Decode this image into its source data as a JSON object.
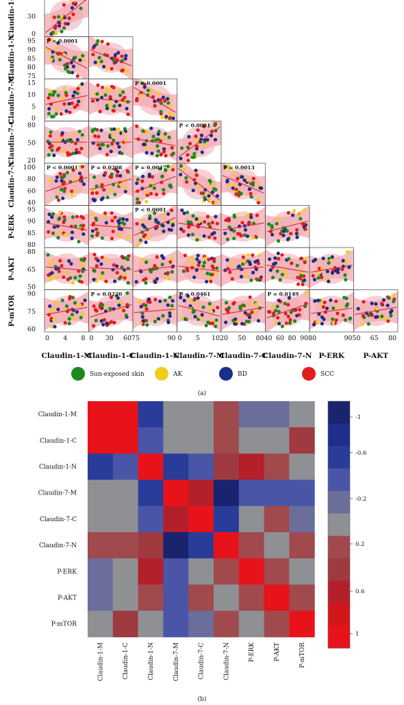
{
  "chart_data": [
    {
      "type": "scatter",
      "variables": [
        "Claudin-1-M",
        "Claudin-1-C",
        "Claudin-1-N",
        "Claudin-7-M",
        "Claudin-7-C",
        "Claudin-7-N",
        "P-ERK",
        "P-AKT",
        "P-mTOR"
      ],
      "row_labels": [
        "Claudin-1-C",
        "Claudin-1-N",
        "Claudin-7-M",
        "Claudin-7-C",
        "Claudin-7-N",
        "P-ERK",
        "P-AKT",
        "P-mTOR"
      ],
      "col_labels": [
        "Claudin-1-M",
        "Claudin-1-C",
        "Claudin-1-N",
        "Claudin-7-M",
        "Claudin-7-C",
        "Claudin-7-N",
        "P-ERK",
        "P-AKT"
      ],
      "row_ticks": [
        [
          "60",
          "30",
          "0"
        ],
        [
          "95",
          "90",
          "85",
          "80",
          "75"
        ],
        [
          "15",
          "10",
          "5",
          "0"
        ],
        [
          "80",
          "50",
          "20"
        ],
        [
          "100",
          "80",
          "60",
          "40"
        ],
        [
          "95",
          "90",
          "85",
          "80"
        ],
        [
          "80",
          "65",
          "50"
        ],
        [
          "90",
          "75",
          "60"
        ]
      ],
      "col_ticks": [
        [
          "0",
          "4",
          "8"
        ],
        [
          "0",
          "30",
          "60"
        ],
        [
          "75",
          "90"
        ],
        [
          "0",
          "5",
          "10"
        ],
        [
          "20",
          "50",
          "80"
        ],
        [
          "40",
          "60",
          "80",
          "90"
        ],
        [
          "80",
          "90"
        ],
        [
          "50",
          "65",
          "80"
        ]
      ],
      "row_ranges": [
        [
          -5,
          70
        ],
        [
          72,
          100
        ],
        [
          -1,
          20
        ],
        [
          10,
          95
        ],
        [
          35,
          105
        ],
        [
          78,
          100
        ],
        [
          45,
          90
        ],
        [
          58,
          96
        ]
      ],
      "col_ranges": [
        [
          -1,
          12
        ],
        [
          -5,
          80
        ],
        [
          70,
          100
        ],
        [
          -1,
          15
        ],
        [
          10,
          95
        ],
        [
          35,
          100
        ],
        [
          78,
          100
        ],
        [
          45,
          90
        ]
      ],
      "p_values": [
        {
          "row": 0,
          "col": 0,
          "text": "P < 0.0001"
        },
        {
          "row": 1,
          "col": 0,
          "text": "P < 0.0001"
        },
        {
          "row": 2,
          "col": 2,
          "text": "P < 0.0001"
        },
        {
          "row": 3,
          "col": 3,
          "text": "P < 0.0001"
        },
        {
          "row": 4,
          "col": 0,
          "text": "P < 0.0001"
        },
        {
          "row": 4,
          "col": 1,
          "text": "P = 0.0208"
        },
        {
          "row": 4,
          "col": 2,
          "text": "P = 0.0037"
        },
        {
          "row": 4,
          "col": 4,
          "text": "P = 0.0013"
        },
        {
          "row": 5,
          "col": 2,
          "text": "P < 0.0001"
        },
        {
          "row": 7,
          "col": 1,
          "text": "P = 0.0220"
        },
        {
          "row": 7,
          "col": 3,
          "text": "P = 0.0461"
        },
        {
          "row": 7,
          "col": 5,
          "text": "P = 0.0149"
        }
      ],
      "slopes": [
        [
          0.95
        ],
        [
          -0.6,
          -0.45
        ],
        [
          0.25,
          -0.1,
          -0.7
        ],
        [
          0.0,
          0.0,
          -0.2,
          0.85
        ],
        [
          0.4,
          0.3,
          0.45,
          -0.9,
          -0.5
        ],
        [
          -0.2,
          -0.1,
          0.5,
          -0.2,
          0.2,
          0.3
        ],
        [
          -0.1,
          -0.05,
          0.15,
          -0.15,
          0.1,
          -0.2,
          0.2
        ],
        [
          0.2,
          0.35,
          0.1,
          -0.3,
          0.2,
          0.4,
          0.15,
          0.2
        ]
      ],
      "legend": [
        {
          "label": "Sun-exposed skin",
          "color": "#1a8a1a"
        },
        {
          "label": "AK",
          "color": "#f0cf1c"
        },
        {
          "label": "BD",
          "color": "#1a2f8a"
        },
        {
          "label": "SCC",
          "color": "#e21c1c"
        }
      ],
      "panel_label": "(a)",
      "band_color": "#f3a8b0",
      "line_color": "#d2283a"
    },
    {
      "type": "heatmap",
      "rows": [
        "Claudin-1-M",
        "Claudin-1-C",
        "Claudin-1-N",
        "Claudin-7-M",
        "Claudin-7-C",
        "Claudin-7-N",
        "P-ERK",
        "P-AKT",
        "P-mTOR"
      ],
      "columns": [
        "Claudin-1-M",
        "Claudin-1-C",
        "Claudin-1-N",
        "Claudin-7-M",
        "Claudin-7-C",
        "Claudin-7-N",
        "P-ERK",
        "P-AKT",
        "P-mTOR"
      ],
      "values": [
        [
          1.0,
          1.0,
          -0.5,
          0.1,
          0.0,
          0.15,
          -0.25,
          -0.1,
          0.1
        ],
        [
          1.0,
          1.0,
          -0.3,
          0.0,
          0.0,
          0.3,
          -0.05,
          0.05,
          0.35
        ],
        [
          -0.5,
          -0.3,
          1.0,
          -0.6,
          -0.3,
          0.35,
          0.6,
          0.3,
          0.1
        ],
        [
          0.1,
          0.0,
          -0.6,
          1.0,
          0.7,
          -0.9,
          -0.3,
          -0.3,
          -0.4
        ],
        [
          0.0,
          0.0,
          -0.3,
          0.7,
          1.0,
          -0.55,
          0.1,
          0.15,
          -0.2
        ],
        [
          0.15,
          0.3,
          0.35,
          -0.9,
          -0.55,
          1.0,
          0.15,
          0.0,
          0.3
        ],
        [
          -0.25,
          -0.05,
          0.6,
          -0.3,
          0.1,
          0.15,
          1.0,
          0.2,
          0.1
        ],
        [
          -0.1,
          0.05,
          0.3,
          -0.3,
          0.15,
          0.0,
          0.2,
          1.0,
          0.15
        ],
        [
          0.1,
          0.35,
          0.1,
          -0.4,
          -0.2,
          0.3,
          0.1,
          0.15,
          1.0
        ]
      ],
      "colorbar_ticks": [
        "-1",
        "-0.6",
        "-0.2",
        "0.2",
        "0.6",
        "1"
      ],
      "colorbar_colors": [
        "#e8131a",
        "#d2171c",
        "#b3202a",
        "#9e3a40",
        "#a04a4e",
        "#8f9094",
        "#6b6e9a",
        "#4a55a8",
        "#2a3c9a",
        "#1f2e8a",
        "#1a236e"
      ],
      "panel_label": "(b)"
    }
  ]
}
